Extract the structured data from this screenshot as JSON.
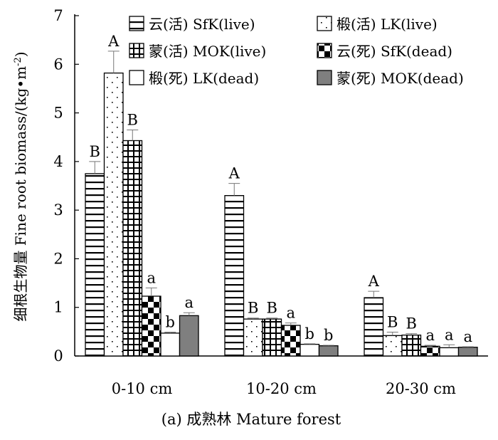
{
  "chart_data": {
    "type": "bar",
    "title": "(a) 成熟林 Mature forest",
    "xlabel": "",
    "ylabel": "细根生物量 Fine root biomass/(kg•m",
    "ylabel_superscript": "-2",
    "ylabel_close": ")",
    "ylim": [
      0,
      7
    ],
    "yticks": [
      "0",
      "1",
      "2",
      "3",
      "4",
      "5",
      "6",
      "7"
    ],
    "categories": [
      "0-10 cm",
      "10-20 cm",
      "20-30 cm"
    ],
    "series": [
      {
        "name": "云(活) SfK(live)",
        "pattern": "hlines",
        "values": [
          3.75,
          3.3,
          1.2
        ],
        "errors": [
          0.25,
          0.25,
          0.13
        ],
        "labels": [
          "B",
          "A",
          "A"
        ]
      },
      {
        "name": "椴(活) LK(live)",
        "pattern": "dots",
        "values": [
          5.82,
          0.76,
          0.42
        ],
        "errors": [
          0.45,
          0.02,
          0.07
        ],
        "labels": [
          "A",
          "B",
          "B"
        ]
      },
      {
        "name": "蒙(活) MOK(live)",
        "pattern": "grid",
        "values": [
          4.43,
          0.76,
          0.43
        ],
        "errors": [
          0.22,
          0.02,
          0.03
        ],
        "labels": [
          "B",
          "B",
          "B"
        ]
      },
      {
        "name": "云(死) SfK(dead)",
        "pattern": "checker",
        "values": [
          1.23,
          0.63,
          0.2
        ],
        "errors": [
          0.17,
          0.05,
          0.02
        ],
        "labels": [
          "a",
          "a",
          "a"
        ]
      },
      {
        "name": "椴(死) LK(dead)",
        "pattern": "white",
        "values": [
          0.47,
          0.24,
          0.17
        ],
        "errors": [
          0.02,
          0.01,
          0.06
        ],
        "labels": [
          "b",
          "b",
          "a"
        ]
      },
      {
        "name": "蒙(死) MOK(dead)",
        "pattern": "gray",
        "values": [
          0.83,
          0.21,
          0.18
        ],
        "errors": [
          0.06,
          0.01,
          0.01
        ],
        "labels": [
          "a",
          "b",
          "a"
        ]
      }
    ],
    "legend_position": "top-right",
    "colors": {
      "bar_stroke": "#000000",
      "gray_fill": "#7f7f7f",
      "background": "#ffffff"
    }
  }
}
